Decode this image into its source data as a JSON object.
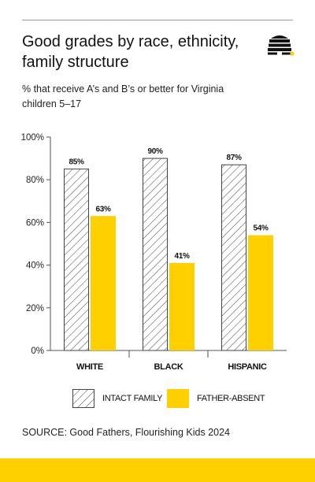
{
  "header": {
    "title": "Good grades by race, ethnicity, family structure",
    "subtitle": "% that receive A’s and B’s or better for Virginia children 5–17",
    "logo_icon": "beehive-icon"
  },
  "colors": {
    "accent": "#FFD000",
    "hatch_stroke": "#444444",
    "axis": "#555555",
    "rule": "#9a9a9a"
  },
  "chart_data": {
    "type": "bar",
    "categories": [
      "WHITE",
      "BLACK",
      "HISPANIC"
    ],
    "series": [
      {
        "name": "INTACT FAMILY",
        "values": [
          85,
          90,
          87
        ],
        "labels": [
          "85%",
          "90%",
          "87%"
        ],
        "style": "hatched"
      },
      {
        "name": "FATHER-ABSENT",
        "values": [
          63,
          41,
          54
        ],
        "labels": [
          "63%",
          "41%",
          "54%"
        ],
        "style": "solid"
      }
    ],
    "ylim": [
      0,
      100
    ],
    "yticks": [
      "0%",
      "20%",
      "40%",
      "60%",
      "80%",
      "100%"
    ],
    "ytick_values": [
      0,
      20,
      40,
      60,
      80,
      100
    ],
    "title": "",
    "xlabel": "",
    "ylabel": "",
    "grid": false,
    "legend_position": "bottom"
  },
  "legend": {
    "items": [
      {
        "label": "INTACT FAMILY"
      },
      {
        "label": "FATHER-ABSENT"
      }
    ]
  },
  "source": "SOURCE: Good Fathers, Flourishing Kids 2024"
}
